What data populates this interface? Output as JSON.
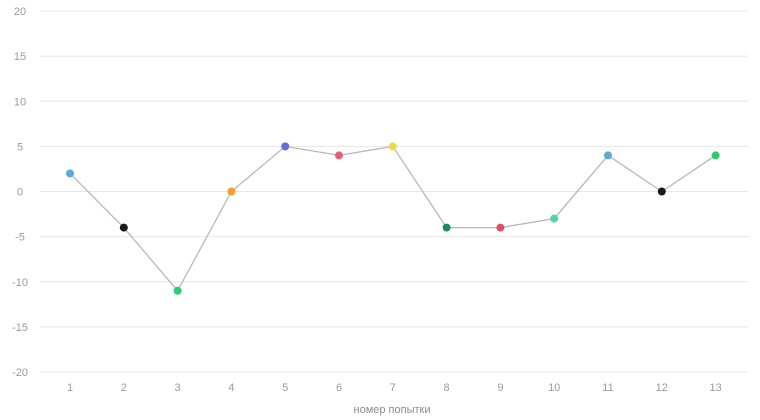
{
  "chart_data": {
    "type": "line",
    "title": "",
    "xlabel": "номер попытки",
    "ylabel": "",
    "ylim": [
      -20,
      20
    ],
    "yticks": [
      20,
      15,
      10,
      5,
      0,
      -5,
      -10,
      -15,
      -20
    ],
    "categories": [
      "1",
      "2",
      "3",
      "4",
      "5",
      "6",
      "7",
      "8",
      "9",
      "10",
      "11",
      "12",
      "13"
    ],
    "series": [
      {
        "values": [
          2,
          -4,
          -11,
          0,
          5,
          4,
          5,
          -4,
          -4,
          -3,
          4,
          0,
          4
        ],
        "point_colors": [
          "#5aa9d6",
          "#1a1a1a",
          "#2ecc71",
          "#f0a030",
          "#6a6ad8",
          "#e0607a",
          "#e8e040",
          "#1a8a6a",
          "#e05060",
          "#4ad8a8",
          "#5aa9d6",
          "#1a1a1a",
          "#2ecc71"
        ]
      }
    ],
    "line_color": "#b8b8b8",
    "grid": true,
    "legend": "none"
  }
}
